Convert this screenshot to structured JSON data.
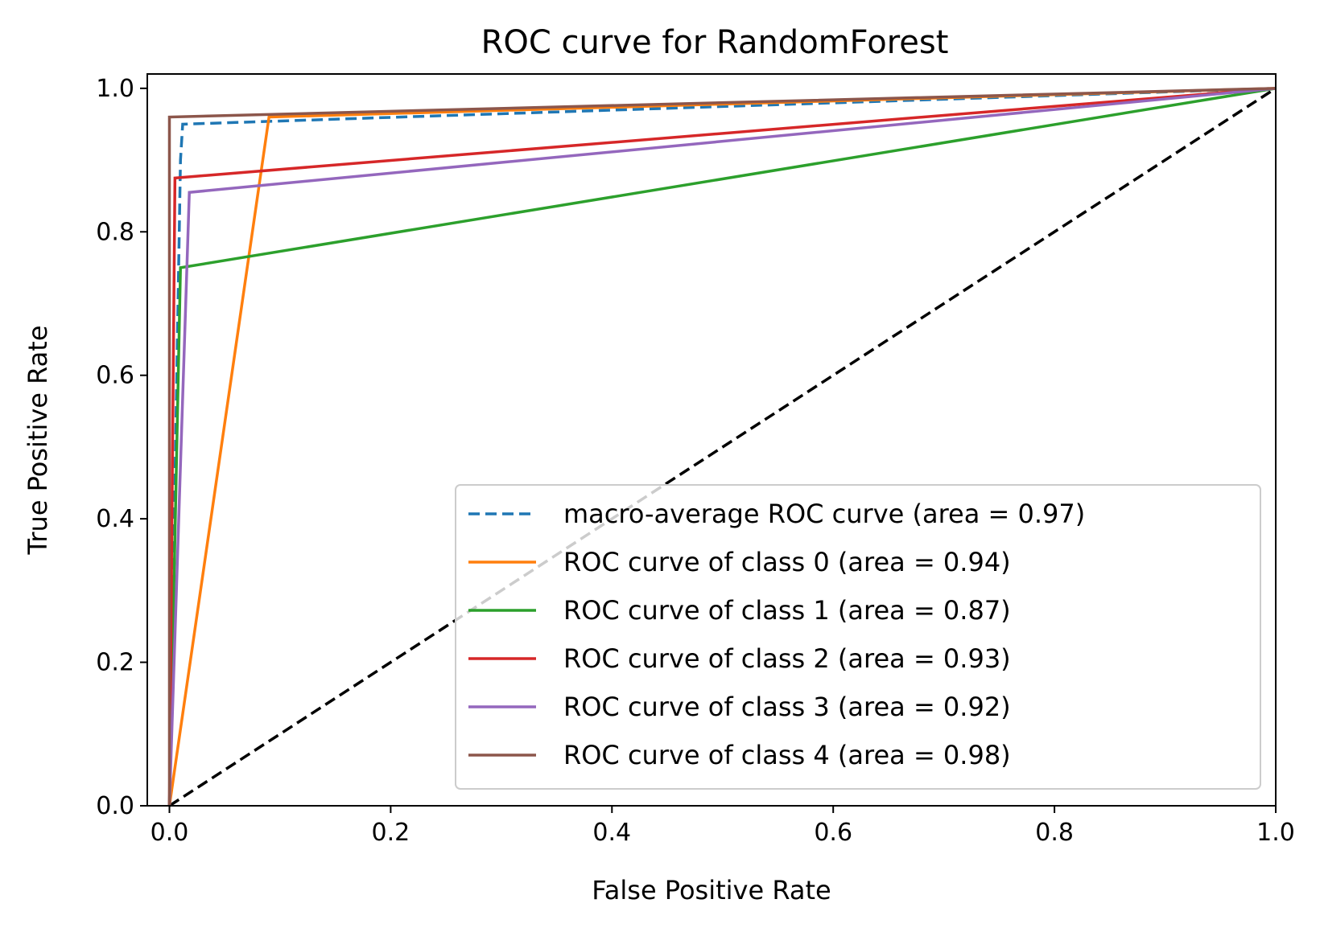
{
  "chart_data": {
    "type": "line",
    "title": "ROC curve for RandomForest",
    "xlabel": "False Positive Rate",
    "ylabel": "True Positive Rate",
    "xlim": [
      -0.02,
      1.0
    ],
    "ylim": [
      0.0,
      1.02
    ],
    "xticks": [
      "0.0",
      "0.2",
      "0.4",
      "0.6",
      "0.8",
      "1.0"
    ],
    "yticks": [
      "0.0",
      "0.2",
      "0.4",
      "0.6",
      "0.8",
      "1.0"
    ],
    "grid": false,
    "legend_position": "lower-right",
    "series": [
      {
        "name": "macro-average ROC curve (area = 0.97)",
        "color": "#1f77b4",
        "dash": "dashed",
        "x": [
          0.0,
          0.01,
          0.012,
          1.0
        ],
        "y": [
          0.0,
          0.9,
          0.95,
          1.0
        ]
      },
      {
        "name": "ROC curve of class 0 (area = 0.94)",
        "color": "#ff7f0e",
        "dash": "solid",
        "x": [
          0.0,
          0.09,
          1.0
        ],
        "y": [
          0.0,
          0.96,
          1.0
        ]
      },
      {
        "name": "ROC curve of class 1 (area = 0.87)",
        "color": "#2ca02c",
        "dash": "solid",
        "x": [
          0.0,
          0.01,
          1.0
        ],
        "y": [
          0.0,
          0.75,
          1.0
        ]
      },
      {
        "name": "ROC curve of class 2 (area = 0.93)",
        "color": "#d62728",
        "dash": "solid",
        "x": [
          0.0,
          0.005,
          1.0
        ],
        "y": [
          0.0,
          0.875,
          1.0
        ]
      },
      {
        "name": "ROC curve of class 3 (area = 0.92)",
        "color": "#9467bd",
        "dash": "solid",
        "x": [
          0.0,
          0.018,
          1.0
        ],
        "y": [
          0.0,
          0.855,
          1.0
        ]
      },
      {
        "name": "ROC curve of class 4 (area = 0.98)",
        "color": "#8c564b",
        "dash": "solid",
        "x": [
          0.0,
          0.0,
          1.0
        ],
        "y": [
          0.0,
          0.96,
          1.0
        ]
      }
    ],
    "reference_line": {
      "color": "#000000",
      "dash": "dashed",
      "x": [
        0.0,
        1.0
      ],
      "y": [
        0.0,
        1.0
      ]
    }
  }
}
